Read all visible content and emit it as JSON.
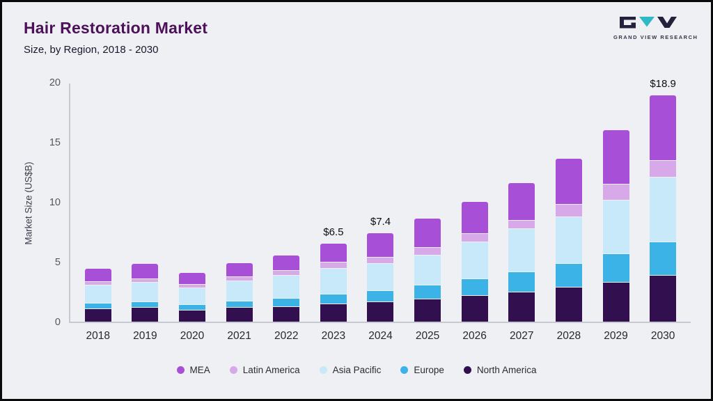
{
  "header": {
    "title": "Hair Restoration Market",
    "subtitle": "Size, by Region, 2018 - 2030"
  },
  "logo": {
    "text": "GRAND VIEW RESEARCH"
  },
  "colors": {
    "background": "#eff0f4",
    "title": "#4c1158",
    "axis": "#c6c8d2",
    "logo_teal": "#2fb9c6",
    "logo_dark": "#22223c"
  },
  "chart_data": {
    "type": "bar",
    "variant": "stacked",
    "title": "Hair Restoration Market",
    "subtitle": "Size, by Region, 2018 - 2030",
    "ylabel": "Market Size (US$B)",
    "ylim": [
      0,
      20
    ],
    "yticks": [
      0,
      5,
      10,
      15,
      20
    ],
    "grid": false,
    "legend_position": "bottom",
    "categories": [
      "2018",
      "2019",
      "2020",
      "2021",
      "2022",
      "2023",
      "2024",
      "2025",
      "2026",
      "2027",
      "2028",
      "2029",
      "2030"
    ],
    "series": [
      {
        "name": "North America",
        "color": "#321050",
        "values": [
          1.1,
          1.2,
          1.0,
          1.2,
          1.3,
          1.5,
          1.7,
          1.9,
          2.2,
          2.5,
          2.9,
          3.3,
          3.9
        ]
      },
      {
        "name": "Europe",
        "color": "#3bb3e6",
        "values": [
          0.5,
          0.5,
          0.45,
          0.55,
          0.7,
          0.8,
          0.9,
          1.2,
          1.4,
          1.7,
          2.0,
          2.4,
          2.8
        ]
      },
      {
        "name": "Asia Pacific",
        "color": "#c7e9f9",
        "values": [
          1.5,
          1.6,
          1.4,
          1.7,
          1.9,
          2.2,
          2.3,
          2.5,
          3.1,
          3.6,
          3.9,
          4.5,
          5.4
        ]
      },
      {
        "name": "Latin America",
        "color": "#d7a9e8",
        "values": [
          0.3,
          0.3,
          0.3,
          0.35,
          0.4,
          0.5,
          0.5,
          0.6,
          0.7,
          0.7,
          1.0,
          1.3,
          1.4
        ]
      },
      {
        "name": "MEA",
        "color": "#a84fd8",
        "values": [
          1.0,
          1.2,
          0.95,
          1.1,
          1.2,
          1.5,
          2.0,
          2.4,
          2.6,
          3.1,
          3.8,
          4.5,
          5.4
        ]
      }
    ],
    "totals": [
      4.4,
      4.8,
      4.1,
      4.9,
      5.5,
      6.5,
      7.4,
      8.6,
      10.0,
      11.6,
      13.6,
      16.0,
      18.9
    ],
    "total_labels": [
      "",
      "",
      "",
      "",
      "",
      "$6.5",
      "$7.4",
      "",
      "",
      "",
      "",
      "",
      "$18.9"
    ],
    "legend": [
      "MEA",
      "Latin America",
      "Asia Pacific",
      "Europe",
      "North America"
    ]
  }
}
